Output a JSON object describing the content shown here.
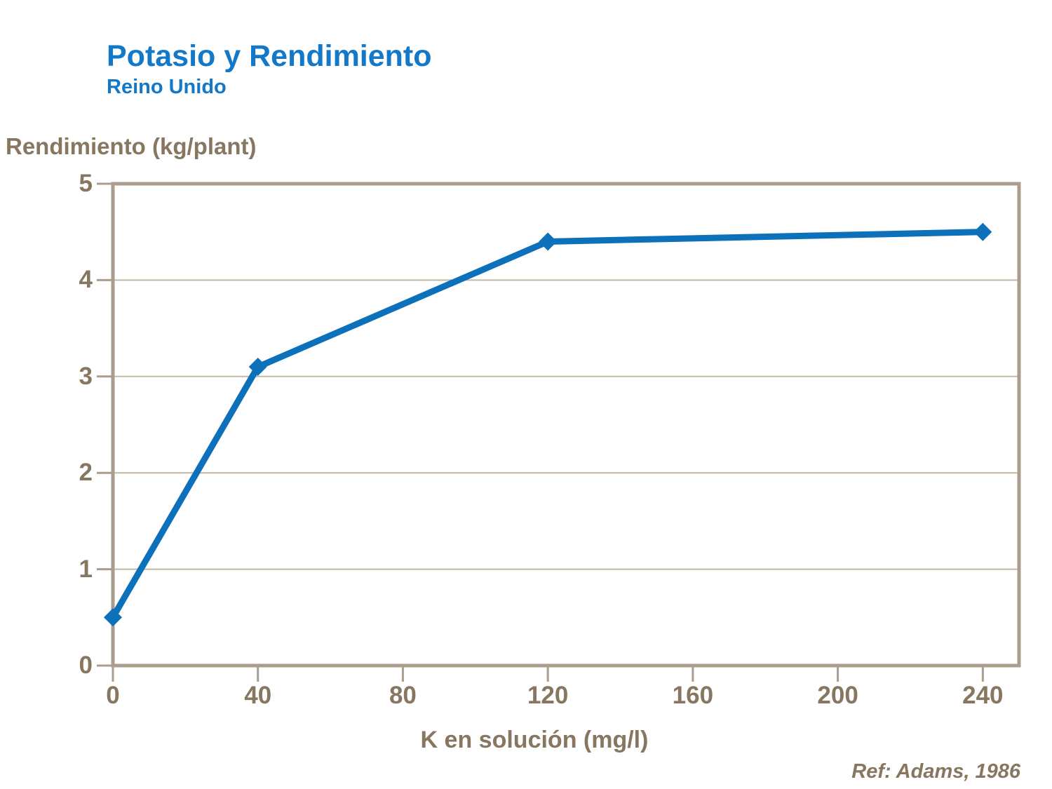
{
  "header": {
    "title": "Potasio y Rendimiento",
    "subtitle": "Reino Unido"
  },
  "footer": {
    "reference": "Ref: Adams, 1986"
  },
  "chart_data": {
    "type": "line",
    "title": "Potasio y Rendimiento",
    "subtitle": "Reino Unido",
    "series": [
      {
        "name": "Rendimiento",
        "x": [
          0,
          40,
          120,
          240
        ],
        "y": [
          0.5,
          3.1,
          4.4,
          4.5
        ]
      }
    ],
    "xlabel": "K en solución (mg/l)",
    "ylabel": "Rendimiento (kg/plant)",
    "xlim": [
      0,
      250
    ],
    "ylim": [
      0,
      5
    ],
    "x_ticks": [
      0,
      40,
      80,
      120,
      160,
      200,
      240
    ],
    "y_ticks": [
      0,
      1,
      2,
      3,
      4,
      5
    ],
    "grid": "horizontal-only",
    "legend": "none",
    "marker": "diamond",
    "colors": {
      "line": "#0d70ba",
      "marker": "#0d70ba",
      "title_blue": "#1478c8",
      "text_brown": "#877660",
      "axis_tan": "#ab9d8e",
      "grid_tan": "#c3b7a7"
    }
  }
}
